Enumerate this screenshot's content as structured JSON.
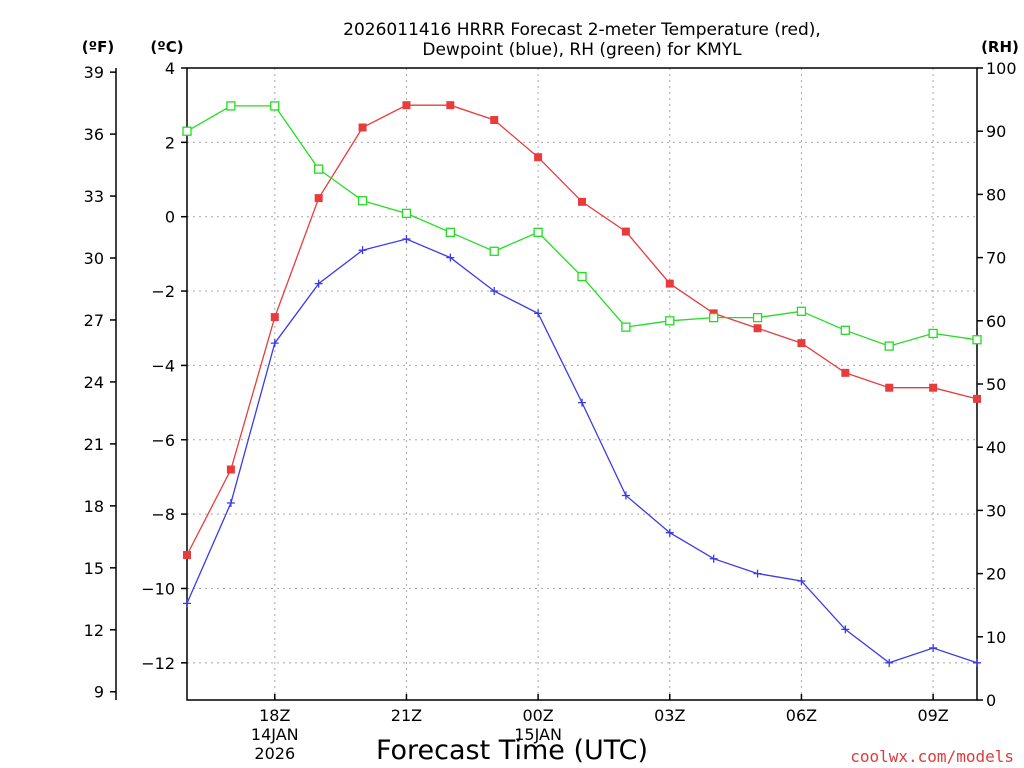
{
  "chart_data": {
    "type": "line",
    "title": "2026011416 HRRR Forecast 2-meter Temperature (red),",
    "subtitle": "Dewpoint (blue), RH (green) for KMYL",
    "xlabel": "Forecast Time (UTC)",
    "credit": "coolwx.com/models",
    "units": {
      "fahrenheit": "(ºF)",
      "celsius": "(ºC)",
      "rh": "(RH)"
    },
    "x_hours": [
      16,
      17,
      18,
      19,
      20,
      21,
      22,
      23,
      24,
      25,
      26,
      27,
      28,
      29,
      30,
      31,
      32,
      33,
      34
    ],
    "xlim": [
      16,
      34
    ],
    "x_ticks": [
      {
        "hour": 18,
        "label": "18Z",
        "date": "14JAN",
        "year": "2026"
      },
      {
        "hour": 21,
        "label": "21Z"
      },
      {
        "hour": 24,
        "label": "00Z",
        "date": "15JAN"
      },
      {
        "hour": 27,
        "label": "03Z"
      },
      {
        "hour": 30,
        "label": "06Z"
      },
      {
        "hour": 33,
        "label": "09Z"
      }
    ],
    "celsius_axis": {
      "range": [
        -13,
        4
      ],
      "ticks": [
        "4",
        "2",
        "0",
        "−2",
        "−4",
        "−6",
        "−8",
        "−10",
        "−12"
      ]
    },
    "fahrenheit_axis": {
      "ticks": [
        "39",
        "36",
        "33",
        "30",
        "27",
        "24",
        "21",
        "18",
        "15",
        "12",
        "9"
      ]
    },
    "rh_axis": {
      "range": [
        0,
        100
      ],
      "ticks": [
        "100",
        "90",
        "80",
        "70",
        "60",
        "50",
        "40",
        "30",
        "20",
        "10",
        "0"
      ]
    },
    "series": [
      {
        "name": "Temperature",
        "color": "#e83c3c",
        "marker": "filled-square",
        "axis": "celsius",
        "values": [
          -9.1,
          -6.8,
          -2.7,
          0.5,
          2.4,
          3.0,
          3.0,
          2.6,
          1.6,
          0.4,
          -0.4,
          -1.8,
          -2.6,
          -3.0,
          -3.4,
          -4.2,
          -4.6,
          -4.6,
          -4.9
        ]
      },
      {
        "name": "Dewpoint",
        "color": "#3a3ae8",
        "marker": "plus",
        "axis": "celsius",
        "values": [
          -10.4,
          -7.7,
          -3.4,
          -1.8,
          -0.9,
          -0.6,
          -1.1,
          -2.0,
          -2.6,
          -5.0,
          -7.5,
          -8.5,
          -9.2,
          -9.6,
          -9.8,
          -11.1,
          -12.0,
          -11.6,
          -12.0
        ]
      },
      {
        "name": "RH",
        "color": "#22dd22",
        "marker": "open-square",
        "axis": "rh",
        "values": [
          90,
          94,
          94,
          84,
          79,
          77,
          74,
          71,
          74,
          67,
          59,
          60,
          60.5,
          60.5,
          61.5,
          58.5,
          56,
          58,
          57
        ]
      }
    ]
  }
}
